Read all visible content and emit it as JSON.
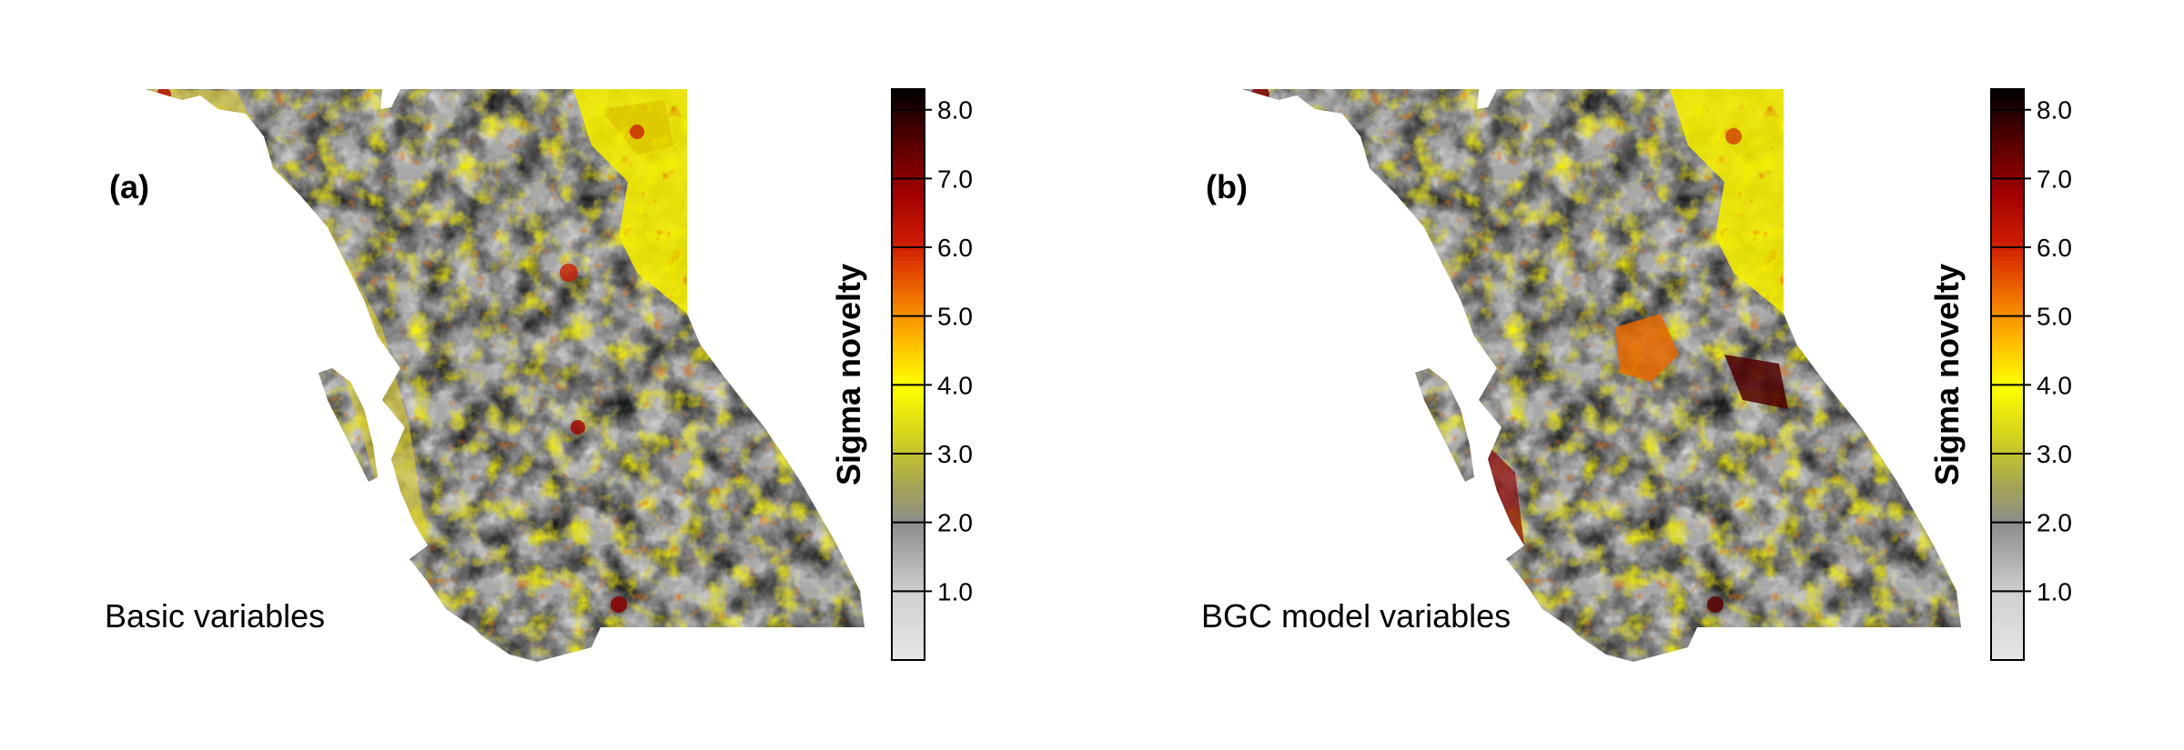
{
  "panels": [
    {
      "letter": "(a)",
      "caption": "Basic variables",
      "colorbar_title": "Sigma novelty"
    },
    {
      "letter": "(b)",
      "caption": "BGC model variables",
      "colorbar_title": "Sigma novelty"
    }
  ],
  "colorbar": {
    "min": 0,
    "max": 8.3,
    "ticks": [
      "1.0",
      "2.0",
      "3.0",
      "4.0",
      "5.0",
      "6.0",
      "7.0",
      "8.0"
    ],
    "tick_values": [
      1,
      2,
      3,
      4,
      5,
      6,
      7,
      8
    ],
    "stops": [
      {
        "value": 0.0,
        "color": "#e6e6e6"
      },
      {
        "value": 1.0,
        "color": "#cfcfcf"
      },
      {
        "value": 2.0,
        "color": "#8c8c8c"
      },
      {
        "value": 2.6,
        "color": "#a8a850"
      },
      {
        "value": 3.3,
        "color": "#d6d61a"
      },
      {
        "value": 4.0,
        "color": "#ffff00"
      },
      {
        "value": 4.6,
        "color": "#ffc000"
      },
      {
        "value": 5.3,
        "color": "#f07000"
      },
      {
        "value": 6.0,
        "color": "#d22000"
      },
      {
        "value": 6.8,
        "color": "#a00000"
      },
      {
        "value": 7.6,
        "color": "#500000"
      },
      {
        "value": 8.3,
        "color": "#000000"
      }
    ]
  }
}
